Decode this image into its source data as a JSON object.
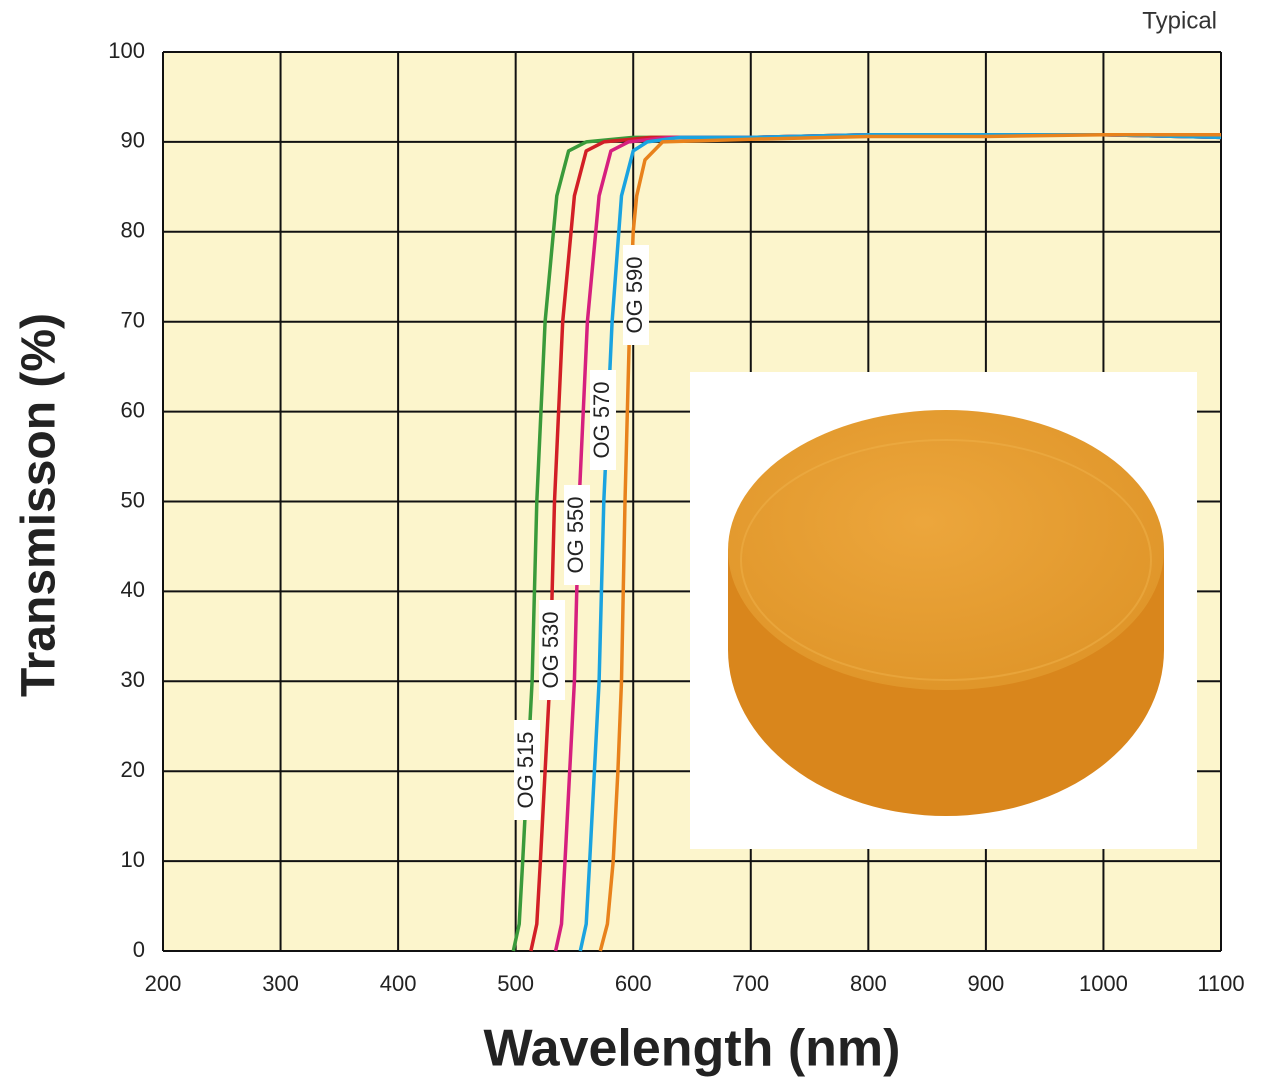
{
  "chart_data": {
    "type": "line",
    "note_label": "Typical",
    "xlabel": "Wavelength (nm)",
    "ylabel": "Transmisson (%)",
    "xlim": [
      200,
      1100
    ],
    "ylim": [
      0,
      100
    ],
    "xticks": [
      200,
      300,
      400,
      500,
      600,
      700,
      800,
      900,
      1000,
      1100
    ],
    "yticks": [
      0,
      10,
      20,
      30,
      40,
      50,
      60,
      70,
      80,
      90,
      100
    ],
    "grid": true,
    "series": [
      {
        "name": "OG 515",
        "color": "#3a9a3a",
        "x": [
          498,
          503,
          506,
          510,
          514,
          518,
          525,
          535,
          545,
          560,
          600,
          700,
          800,
          900,
          1000,
          1100
        ],
        "values": [
          0,
          3,
          10,
          20,
          30,
          50,
          70,
          84,
          89,
          90,
          90.5,
          90.5,
          90.8,
          90.8,
          90.8,
          90.5
        ]
      },
      {
        "name": "OG 530",
        "color": "#d21f26",
        "x": [
          513,
          518,
          521,
          525,
          529,
          533,
          540,
          550,
          560,
          575,
          615,
          700,
          800,
          900,
          1000,
          1100
        ],
        "values": [
          0,
          3,
          10,
          20,
          30,
          50,
          70,
          84,
          89,
          90,
          90.5,
          90.5,
          90.8,
          90.8,
          90.8,
          90.5
        ]
      },
      {
        "name": "OG 550",
        "color": "#d6207e",
        "x": [
          534,
          539,
          542,
          546,
          550,
          554,
          561,
          571,
          581,
          596,
          630,
          700,
          800,
          900,
          1000,
          1100
        ],
        "values": [
          0,
          3,
          10,
          20,
          30,
          50,
          70,
          84,
          89,
          90,
          90.5,
          90.5,
          90.8,
          90.8,
          90.8,
          90.5
        ]
      },
      {
        "name": "OG 570",
        "color": "#1aa3e0",
        "x": [
          555,
          560,
          563,
          567,
          571,
          575,
          582,
          590,
          600,
          612,
          640,
          700,
          800,
          900,
          1000,
          1100
        ],
        "values": [
          0,
          3,
          10,
          20,
          30,
          50,
          70,
          84,
          89,
          90,
          90.5,
          90.5,
          90.8,
          90.8,
          90.8,
          90.5
        ]
      },
      {
        "name": "OG 590",
        "color": "#e8821c",
        "x": [
          572,
          578,
          583,
          587,
          590,
          593,
          597,
          600,
          603,
          610,
          625,
          700,
          800,
          900,
          1000,
          1100
        ],
        "values": [
          0,
          3,
          10,
          20,
          30,
          50,
          70,
          80,
          84,
          88,
          90,
          90.3,
          90.6,
          90.6,
          90.8,
          90.8
        ]
      }
    ]
  }
}
